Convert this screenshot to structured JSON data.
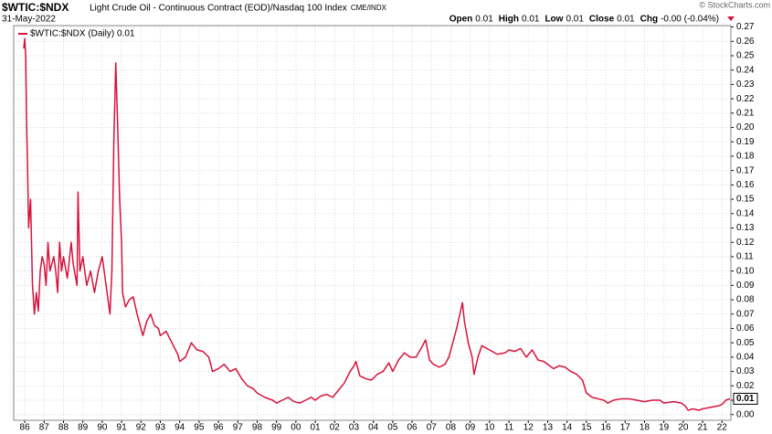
{
  "chart_data": {
    "type": "line",
    "title": "$WTIC:$NDX",
    "subtitle": "Light Crude Oil - Continuous Contract (EOD)/Nasdaq 100 Index",
    "exchange": "CME/INDX",
    "date": "31-May-2022",
    "credit": "© StockCharts.com",
    "quote": [
      {
        "label": "Open",
        "value": "0.01"
      },
      {
        "label": "High",
        "value": "0.01"
      },
      {
        "label": "Low",
        "value": "0.01"
      },
      {
        "label": "Close",
        "value": "0.01"
      },
      {
        "label": "Chg",
        "value": "-0.00 (-0.04%)"
      }
    ],
    "last_value_label": "0.01",
    "grid": true,
    "xlim": [
      1985.43,
      2022.46
    ],
    "ylim": [
      -0.004,
      0.271
    ],
    "xticks": [
      {
        "value": 1986,
        "label": "86"
      },
      {
        "value": 1987,
        "label": "87"
      },
      {
        "value": 1988,
        "label": "88"
      },
      {
        "value": 1989,
        "label": "89"
      },
      {
        "value": 1990,
        "label": "90"
      },
      {
        "value": 1991,
        "label": "91"
      },
      {
        "value": 1992,
        "label": "92"
      },
      {
        "value": 1993,
        "label": "93"
      },
      {
        "value": 1994,
        "label": "94"
      },
      {
        "value": 1995,
        "label": "95"
      },
      {
        "value": 1996,
        "label": "96"
      },
      {
        "value": 1997,
        "label": "97"
      },
      {
        "value": 1998,
        "label": "98"
      },
      {
        "value": 1999,
        "label": "99"
      },
      {
        "value": 2000,
        "label": "00"
      },
      {
        "value": 2001,
        "label": "01"
      },
      {
        "value": 2002,
        "label": "02"
      },
      {
        "value": 2003,
        "label": "03"
      },
      {
        "value": 2004,
        "label": "04"
      },
      {
        "value": 2005,
        "label": "05"
      },
      {
        "value": 2006,
        "label": "06"
      },
      {
        "value": 2007,
        "label": "07"
      },
      {
        "value": 2008,
        "label": "08"
      },
      {
        "value": 2009,
        "label": "09"
      },
      {
        "value": 2010,
        "label": "10"
      },
      {
        "value": 2011,
        "label": "11"
      },
      {
        "value": 2012,
        "label": "12"
      },
      {
        "value": 2013,
        "label": "13"
      },
      {
        "value": 2014,
        "label": "14"
      },
      {
        "value": 2015,
        "label": "15"
      },
      {
        "value": 2016,
        "label": "16"
      },
      {
        "value": 2017,
        "label": "17"
      },
      {
        "value": 2018,
        "label": "18"
      },
      {
        "value": 2019,
        "label": "19"
      },
      {
        "value": 2020,
        "label": "20"
      },
      {
        "value": 2021,
        "label": "21"
      },
      {
        "value": 2022,
        "label": "22"
      }
    ],
    "yticks": [
      {
        "value": 0,
        "label": "0.00"
      },
      {
        "value": 0.01,
        "label": "0.01"
      },
      {
        "value": 0.02,
        "label": "0.02"
      },
      {
        "value": 0.03,
        "label": "0.03"
      },
      {
        "value": 0.04,
        "label": "0.04"
      },
      {
        "value": 0.05,
        "label": "0.05"
      },
      {
        "value": 0.06,
        "label": "0.06"
      },
      {
        "value": 0.07,
        "label": "0.07"
      },
      {
        "value": 0.08,
        "label": "0.08"
      },
      {
        "value": 0.09,
        "label": "0.09"
      },
      {
        "value": 0.1,
        "label": "0.10"
      },
      {
        "value": 0.11,
        "label": "0.11"
      },
      {
        "value": 0.12,
        "label": "0.12"
      },
      {
        "value": 0.13,
        "label": "0.13"
      },
      {
        "value": 0.14,
        "label": "0.14"
      },
      {
        "value": 0.15,
        "label": "0.15"
      },
      {
        "value": 0.16,
        "label": "0.16"
      },
      {
        "value": 0.17,
        "label": "0.17"
      },
      {
        "value": 0.18,
        "label": "0.18"
      },
      {
        "value": 0.19,
        "label": "0.19"
      },
      {
        "value": 0.2,
        "label": "0.20"
      },
      {
        "value": 0.21,
        "label": "0.21"
      },
      {
        "value": 0.22,
        "label": "0.22"
      },
      {
        "value": 0.23,
        "label": "0.23"
      },
      {
        "value": 0.24,
        "label": "0.24"
      },
      {
        "value": 0.25,
        "label": "0.25"
      },
      {
        "value": 0.26,
        "label": "0.26"
      },
      {
        "value": 0.27,
        "label": "0.27"
      }
    ],
    "x": [
      1985.95,
      1986.0,
      1986.05,
      1986.1,
      1986.15,
      1986.2,
      1986.3,
      1986.4,
      1986.5,
      1986.6,
      1986.7,
      1986.8,
      1986.9,
      1987.0,
      1987.1,
      1987.2,
      1987.3,
      1987.4,
      1987.5,
      1987.6,
      1987.7,
      1987.8,
      1987.9,
      1988.0,
      1988.2,
      1988.4,
      1988.5,
      1988.7,
      1988.75,
      1988.85,
      1989.0,
      1989.2,
      1989.4,
      1989.6,
      1989.8,
      1990.0,
      1990.2,
      1990.4,
      1990.5,
      1990.6,
      1990.7,
      1990.8,
      1990.9,
      1991.0,
      1991.05,
      1991.2,
      1991.4,
      1991.6,
      1991.8,
      1992.0,
      1992.1,
      1992.3,
      1992.5,
      1992.7,
      1992.9,
      1993.0,
      1993.3,
      1993.6,
      1993.9,
      1994.0,
      1994.3,
      1994.6,
      1994.9,
      1995.2,
      1995.5,
      1995.7,
      1996.0,
      1996.3,
      1996.6,
      1996.9,
      1997.2,
      1997.5,
      1997.8,
      1998.0,
      1998.4,
      1998.8,
      1999.0,
      1999.3,
      1999.6,
      1999.9,
      2000.2,
      2000.5,
      2000.8,
      2001.0,
      2001.3,
      2001.6,
      2001.9,
      2002.2,
      2002.5,
      2002.8,
      2003.0,
      2003.1,
      2003.3,
      2003.6,
      2003.9,
      2004.2,
      2004.5,
      2004.8,
      2005.0,
      2005.3,
      2005.6,
      2005.9,
      2006.2,
      2006.5,
      2006.7,
      2006.9,
      2007.1,
      2007.4,
      2007.7,
      2007.9,
      2008.1,
      2008.3,
      2008.5,
      2008.6,
      2008.7,
      2008.9,
      2009.0,
      2009.1,
      2009.2,
      2009.4,
      2009.6,
      2010.0,
      2010.4,
      2010.8,
      2011.0,
      2011.3,
      2011.6,
      2011.9,
      2012.2,
      2012.5,
      2012.8,
      2013.0,
      2013.3,
      2013.6,
      2013.9,
      2014.2,
      2014.5,
      2014.8,
      2015.0,
      2015.3,
      2015.6,
      2015.9,
      2016.1,
      2016.4,
      2016.8,
      2017.2,
      2017.6,
      2018.0,
      2018.4,
      2018.8,
      2019.0,
      2019.5,
      2019.9,
      2020.1,
      2020.25,
      2020.5,
      2020.8,
      2021.0,
      2021.4,
      2021.8,
      2022.0,
      2022.2,
      2022.41
    ],
    "series": [
      {
        "name": "$WTIC:$NDX (Daily) 0.01",
        "color": "#d6133c",
        "values": [
          0.255,
          0.262,
          0.25,
          0.2,
          0.17,
          0.13,
          0.15,
          0.09,
          0.07,
          0.085,
          0.072,
          0.1,
          0.11,
          0.105,
          0.09,
          0.12,
          0.1,
          0.105,
          0.11,
          0.1,
          0.085,
          0.12,
          0.1,
          0.11,
          0.095,
          0.12,
          0.105,
          0.09,
          0.155,
          0.1,
          0.11,
          0.09,
          0.1,
          0.085,
          0.1,
          0.11,
          0.09,
          0.07,
          0.1,
          0.19,
          0.245,
          0.2,
          0.15,
          0.12,
          0.085,
          0.075,
          0.08,
          0.082,
          0.07,
          0.06,
          0.055,
          0.065,
          0.07,
          0.062,
          0.06,
          0.055,
          0.058,
          0.05,
          0.042,
          0.037,
          0.04,
          0.05,
          0.045,
          0.044,
          0.04,
          0.03,
          0.032,
          0.035,
          0.03,
          0.032,
          0.025,
          0.02,
          0.018,
          0.015,
          0.012,
          0.01,
          0.008,
          0.01,
          0.012,
          0.009,
          0.008,
          0.01,
          0.012,
          0.01,
          0.013,
          0.014,
          0.012,
          0.017,
          0.022,
          0.03,
          0.034,
          0.037,
          0.027,
          0.025,
          0.024,
          0.028,
          0.03,
          0.036,
          0.03,
          0.038,
          0.043,
          0.04,
          0.04,
          0.047,
          0.052,
          0.038,
          0.035,
          0.033,
          0.035,
          0.04,
          0.05,
          0.06,
          0.072,
          0.078,
          0.065,
          0.05,
          0.045,
          0.04,
          0.028,
          0.04,
          0.048,
          0.045,
          0.042,
          0.043,
          0.045,
          0.044,
          0.046,
          0.04,
          0.045,
          0.038,
          0.037,
          0.035,
          0.032,
          0.034,
          0.033,
          0.03,
          0.028,
          0.024,
          0.015,
          0.012,
          0.011,
          0.01,
          0.008,
          0.01,
          0.011,
          0.011,
          0.01,
          0.009,
          0.01,
          0.01,
          0.008,
          0.009,
          0.008,
          0.006,
          0.003,
          0.004,
          0.003,
          0.004,
          0.005,
          0.006,
          0.007,
          0.01,
          0.011
        ]
      }
    ]
  }
}
